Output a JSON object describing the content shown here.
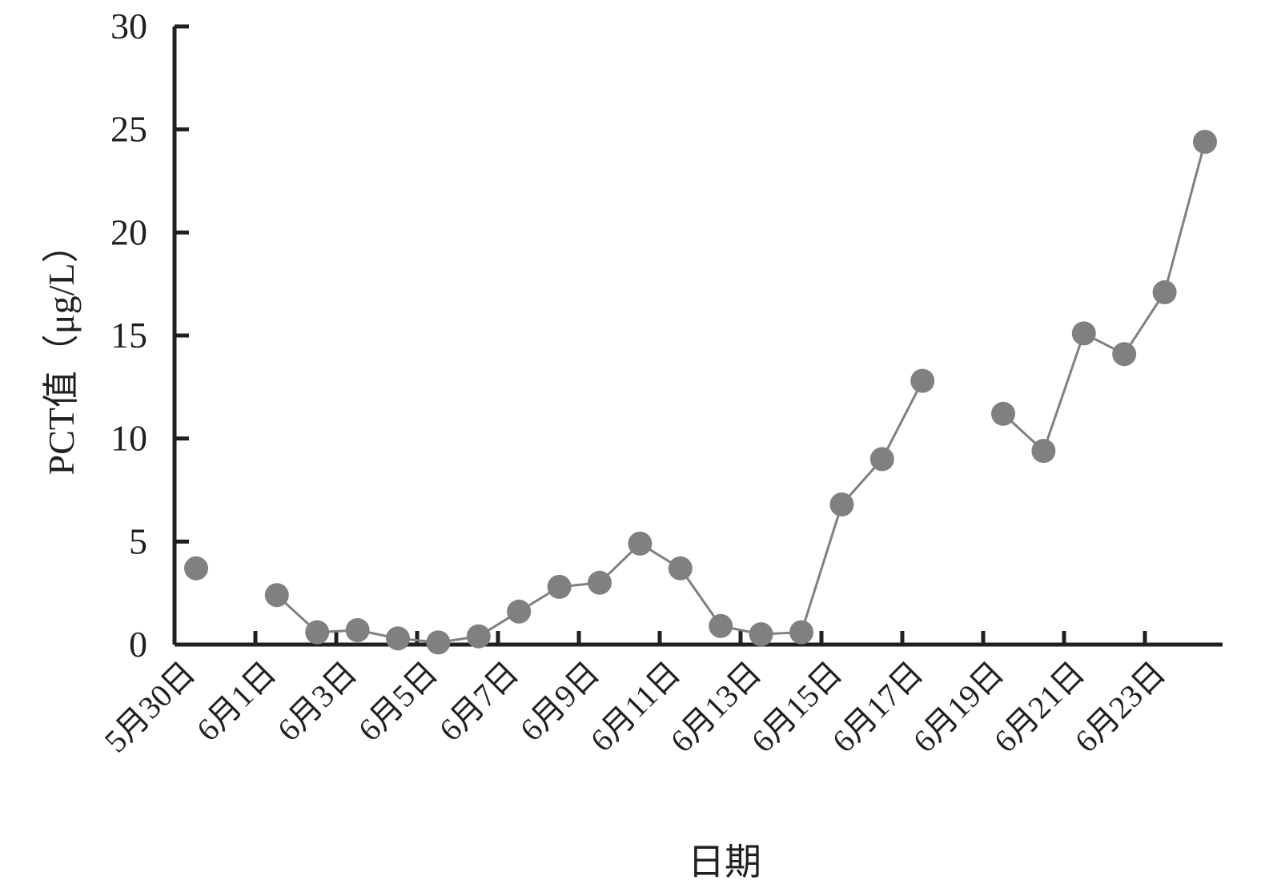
{
  "chart_data": {
    "type": "line",
    "xlabel": "日期",
    "ylabel": "PCT值（μg/L）",
    "ylim": [
      0,
      30
    ],
    "yticks": [
      "0",
      "5",
      "10",
      "15",
      "20",
      "25",
      "30"
    ],
    "x_tick_labels": [
      "5月30日",
      "6月1日",
      "6月3日",
      "6月5日",
      "6月7日",
      "6月9日",
      "6月11日",
      "6月13日",
      "6月15日",
      "6月17日",
      "6月19日",
      "6月21日",
      "6月23日"
    ],
    "x_range": [
      "5月30日",
      "6月25日"
    ],
    "grid": false,
    "series": [
      {
        "color": "#808080",
        "points": [
          {
            "x": "5月30日",
            "y": 3.7
          },
          {
            "x": "6月1日",
            "y": null
          },
          {
            "x": "6月2日",
            "y": 2.4
          },
          {
            "x": "6月3日",
            "y": 0.6
          },
          {
            "x": "6月4日",
            "y": 0.7
          },
          {
            "x": "6月5日",
            "y": 0.3
          },
          {
            "x": "6月6日",
            "y": 0.1
          },
          {
            "x": "6月7日",
            "y": 0.4
          },
          {
            "x": "6月8日",
            "y": 1.6
          },
          {
            "x": "6月9日",
            "y": 2.8
          },
          {
            "x": "6月10日",
            "y": 3.0
          },
          {
            "x": "6月11日",
            "y": 4.9
          },
          {
            "x": "6月12日",
            "y": 3.7
          },
          {
            "x": "6月13日",
            "y": 0.9
          },
          {
            "x": "6月14日",
            "y": 0.5
          },
          {
            "x": "6月15日",
            "y": 0.6
          },
          {
            "x": "6月16日",
            "y": 6.8
          },
          {
            "x": "6月17日",
            "y": 9.0
          },
          {
            "x": "6月18日",
            "y": 12.8
          },
          {
            "x": "6月19日",
            "y": null
          },
          {
            "x": "6月20日",
            "y": 11.2
          },
          {
            "x": "6月21日",
            "y": 9.4
          },
          {
            "x": "6月22日",
            "y": 15.1
          },
          {
            "x": "6月23日",
            "y": 14.1
          },
          {
            "x": "6月24日",
            "y": 17.1
          },
          {
            "x": "6月25日",
            "y": 24.4
          }
        ]
      }
    ]
  }
}
